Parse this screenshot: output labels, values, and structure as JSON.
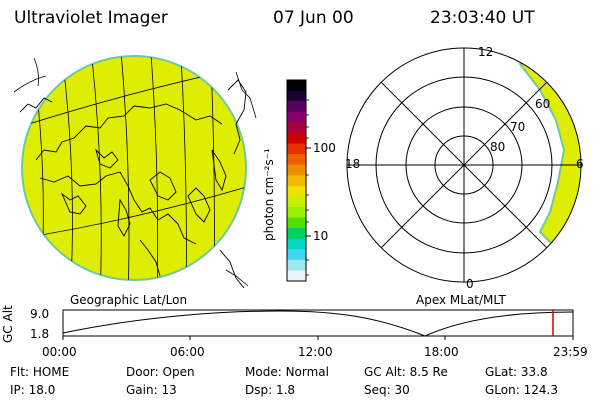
{
  "header": {
    "instrument": "Ultraviolet Imager",
    "date": "07 Jun 00",
    "time": "23:03:40 UT"
  },
  "geo_panel": {
    "label": "Geographic Lat/Lon"
  },
  "colorbar": {
    "unit_label": "photon cm⁻²s⁻¹",
    "ticks": [
      "100",
      "10"
    ],
    "colors": [
      "#000000",
      "#1a0033",
      "#5a0060",
      "#8a006a",
      "#aa0040",
      "#cc0000",
      "#e83000",
      "#f06000",
      "#f08c00",
      "#f0b800",
      "#f0e000",
      "#c8f000",
      "#98f000",
      "#50e000",
      "#00d060",
      "#00d8c0",
      "#40d8f0",
      "#a0e8f0",
      "#e8f4f8"
    ]
  },
  "polar_panel": {
    "label": "Apex MLat/MLT",
    "mlt_labels": [
      "12",
      "18",
      "6",
      "0"
    ],
    "mlat_labels": [
      "60",
      "70",
      "80"
    ]
  },
  "altitude_plot": {
    "ylabel": "GC Alt",
    "yticks": [
      "9.0",
      "1.8"
    ],
    "xticks": [
      "00:00",
      "06:00",
      "12:00",
      "18:00",
      "23:59"
    ],
    "current_time_marker_hours": 23.06
  },
  "info": {
    "row1": [
      {
        "key": "Flt:",
        "value": "HOME"
      },
      {
        "key": "Door:",
        "value": "Open"
      },
      {
        "key": "Mode:",
        "value": "Normal"
      },
      {
        "key": "GC Alt:",
        "value": "8.5 Re"
      },
      {
        "key": "GLat:",
        "value": "33.8"
      }
    ],
    "row2": [
      {
        "key": "IP:",
        "value": "18.0"
      },
      {
        "key": "Gain:",
        "value": "13"
      },
      {
        "key": "Dsp:",
        "value": "1.8"
      },
      {
        "key": "Seq:",
        "value": "30"
      },
      {
        "key": "GLon:",
        "value": "124.3"
      }
    ]
  },
  "accent_colors": {
    "aurora_fill": "#dfee00",
    "marker": "#d00000"
  }
}
